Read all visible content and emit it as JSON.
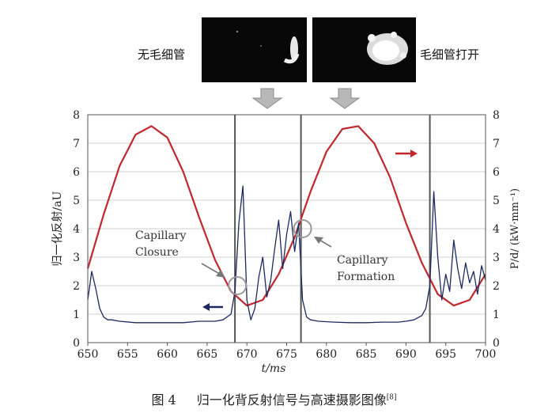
{
  "photos": {
    "left_label": "无毛细管",
    "right_label": "毛细管打开"
  },
  "caption": {
    "number": "图 4",
    "text": "归一化背反射信号与高速摄影图像",
    "ref": "[8]"
  },
  "chart_data": {
    "type": "line",
    "xlabel": "t/ms",
    "ylabel_left": "归一化反射/aU",
    "ylabel_right": "P/d/ (kW·mm⁻¹)",
    "xlim": [
      650,
      700
    ],
    "ylim": [
      0,
      8
    ],
    "ylim_right": [
      0,
      8
    ],
    "x_ticks": [
      "650",
      "655",
      "660",
      "665",
      "670",
      "675",
      "680",
      "685",
      "690",
      "695",
      "700"
    ],
    "y_ticks": [
      "0",
      "1",
      "2",
      "3",
      "4",
      "5",
      "6",
      "7",
      "8"
    ],
    "y_ticks_right": [
      "0",
      "1",
      "2",
      "3",
      "4",
      "5",
      "6",
      "7",
      "8"
    ],
    "grid": true,
    "vertical_lines": [
      668.5,
      676.8,
      693.0
    ],
    "annotations": [
      {
        "text_lines": [
          "Capillary",
          "Closure"
        ],
        "point": [
          668.8,
          2.0
        ]
      },
      {
        "text_lines": [
          "Capillary",
          "Formation"
        ],
        "point": [
          677.0,
          4.0
        ]
      }
    ],
    "series": [
      {
        "axis": "right",
        "color": "#c0282d",
        "x": [
          650,
          652,
          654,
          656,
          658,
          660,
          662,
          664,
          666,
          668,
          670,
          672,
          674,
          676,
          678,
          680,
          682,
          684,
          686,
          688,
          690,
          692,
          694,
          696,
          698,
          700
        ],
        "y": [
          2.6,
          4.5,
          6.2,
          7.3,
          7.6,
          7.2,
          6.0,
          4.4,
          2.9,
          1.8,
          1.3,
          1.5,
          2.4,
          3.7,
          5.3,
          6.7,
          7.5,
          7.6,
          7.0,
          5.8,
          4.2,
          2.8,
          1.7,
          1.3,
          1.5,
          2.4
        ]
      },
      {
        "axis": "left",
        "color": "#1c2a5e",
        "x": [
          650,
          650.5,
          651,
          651.5,
          652,
          652.5,
          653,
          654,
          656,
          658,
          660,
          662,
          664,
          666,
          667,
          668,
          668.5,
          669,
          669.5,
          670,
          670.5,
          671,
          671.5,
          672,
          672.5,
          673,
          673.5,
          674,
          674.5,
          675,
          675.5,
          676,
          676.5,
          677,
          677.5,
          678,
          679,
          681,
          683,
          685,
          687,
          689,
          690,
          691,
          692,
          692.5,
          693,
          693.5,
          694,
          694.5,
          695,
          695.5,
          696,
          696.5,
          697,
          697.5,
          698,
          698.5,
          699,
          699.5,
          700
        ],
        "y": [
          1.5,
          2.5,
          1.9,
          1.2,
          0.9,
          0.8,
          0.8,
          0.75,
          0.7,
          0.7,
          0.7,
          0.7,
          0.75,
          0.75,
          0.8,
          1.0,
          1.8,
          4.2,
          5.5,
          1.5,
          0.8,
          1.2,
          2.3,
          3.0,
          1.6,
          2.2,
          3.3,
          4.3,
          2.6,
          3.8,
          4.6,
          3.2,
          4.2,
          1.5,
          0.9,
          0.8,
          0.75,
          0.72,
          0.7,
          0.7,
          0.72,
          0.72,
          0.75,
          0.8,
          0.95,
          1.2,
          2.0,
          5.3,
          3.0,
          1.5,
          2.4,
          1.8,
          3.6,
          2.6,
          1.9,
          2.8,
          2.1,
          2.5,
          1.7,
          2.7,
          2.2
        ]
      }
    ]
  }
}
